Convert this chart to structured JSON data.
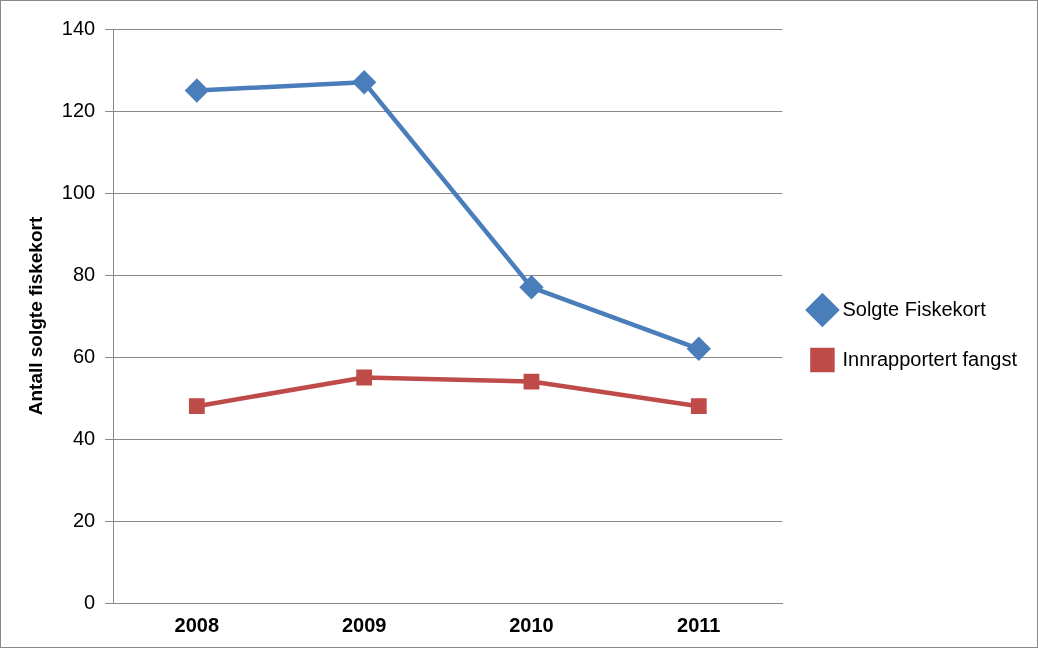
{
  "chart_data": {
    "type": "line",
    "ylabel": "Antall solgte fiskekort",
    "categories": [
      "2008",
      "2009",
      "2010",
      "2011"
    ],
    "series": [
      {
        "name": "Solgte Fiskekort",
        "color": "#4a7ebb",
        "values": [
          125,
          127,
          77,
          62
        ],
        "marker": "diamond"
      },
      {
        "name": "Innrapportert fangst",
        "color": "#be4b48",
        "values": [
          48,
          55,
          54,
          48
        ],
        "marker": "square"
      }
    ],
    "ylim": [
      0,
      140
    ],
    "yticks": [
      0,
      20,
      40,
      60,
      80,
      100,
      120,
      140
    ],
    "grid": "y",
    "legend": "right",
    "line_style": "solid"
  }
}
